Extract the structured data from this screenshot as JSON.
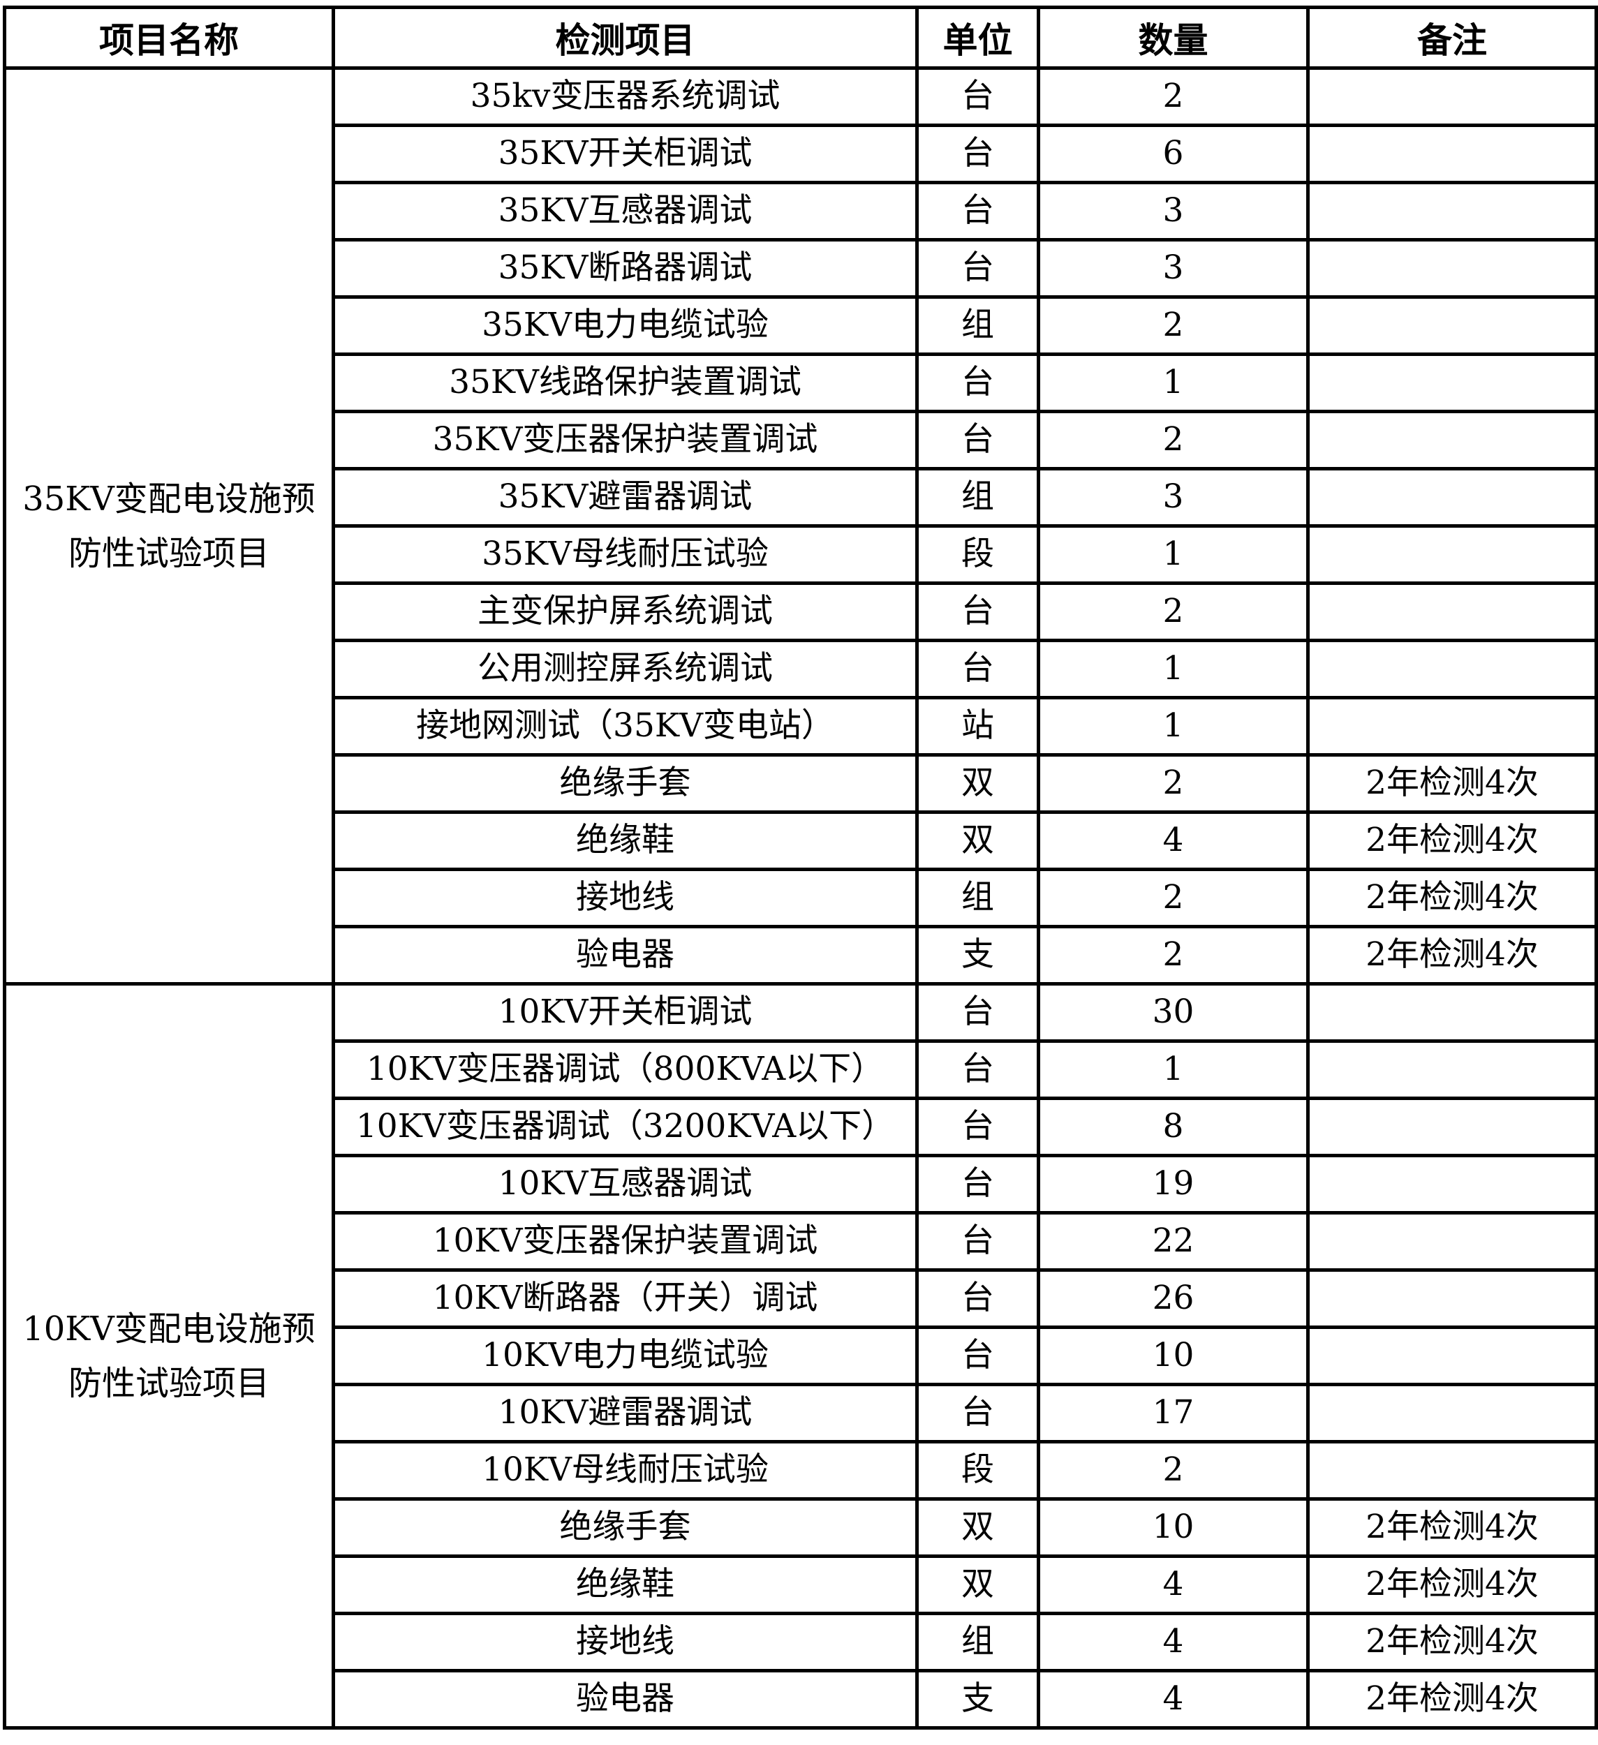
{
  "headers": [
    "项目名称",
    "检测项目",
    "单位",
    "数量",
    "备注"
  ],
  "groups": [
    {
      "name": "35KV变配电设施预防性试验项目",
      "rows": [
        [
          "35kv变压器系统调试",
          "台",
          "2",
          ""
        ],
        [
          "35KV开关柜调试",
          "台",
          "6",
          ""
        ],
        [
          "35KV互感器调试",
          "台",
          "3",
          ""
        ],
        [
          "35KV断路器调试",
          "台",
          "3",
          ""
        ],
        [
          "35KV电力电缆试验",
          "组",
          "2",
          ""
        ],
        [
          "35KV线路保护装置调试",
          "台",
          "1",
          ""
        ],
        [
          "35KV变压器保护装置调试",
          "台",
          "2",
          ""
        ],
        [
          "35KV避雷器调试",
          "组",
          "3",
          ""
        ],
        [
          "35KV母线耐压试验",
          "段",
          "1",
          ""
        ],
        [
          "主变保护屏系统调试",
          "台",
          "2",
          ""
        ],
        [
          "公用测控屏系统调试",
          "台",
          "1",
          ""
        ],
        [
          "接地网测试（35KV变电站）",
          "站",
          "1",
          ""
        ],
        [
          "绝缘手套",
          "双",
          "2",
          "2年检测4次"
        ],
        [
          "绝缘鞋",
          "双",
          "4",
          "2年检测4次"
        ],
        [
          "接地线",
          "组",
          "2",
          "2年检测4次"
        ],
        [
          "验电器",
          "支",
          "2",
          "2年检测4次"
        ]
      ]
    },
    {
      "name": "10KV变配电设施预防性试验项目",
      "rows": [
        [
          "10KV开关柜调试",
          "台",
          "30",
          ""
        ],
        [
          "10KV变压器调试（800KVA以下）",
          "台",
          "1",
          ""
        ],
        [
          "10KV变压器调试（3200KVA以下）",
          "台",
          "8",
          ""
        ],
        [
          "10KV互感器调试",
          "台",
          "19",
          ""
        ],
        [
          "10KV变压器保护装置调试",
          "台",
          "22",
          ""
        ],
        [
          "10KV断路器（开关）调试",
          "台",
          "26",
          ""
        ],
        [
          "10KV电力电缆试验",
          "台",
          "10",
          ""
        ],
        [
          "10KV避雷器调试",
          "台",
          "17",
          ""
        ],
        [
          "10KV母线耐压试验",
          "段",
          "2",
          ""
        ],
        [
          "绝缘手套",
          "双",
          "10",
          "2年检测4次"
        ],
        [
          "绝缘鞋",
          "双",
          "4",
          "2年检测4次"
        ],
        [
          "接地线",
          "组",
          "4",
          "2年检测4次"
        ],
        [
          "验电器",
          "支",
          "4",
          "2年检测4次"
        ]
      ]
    }
  ]
}
